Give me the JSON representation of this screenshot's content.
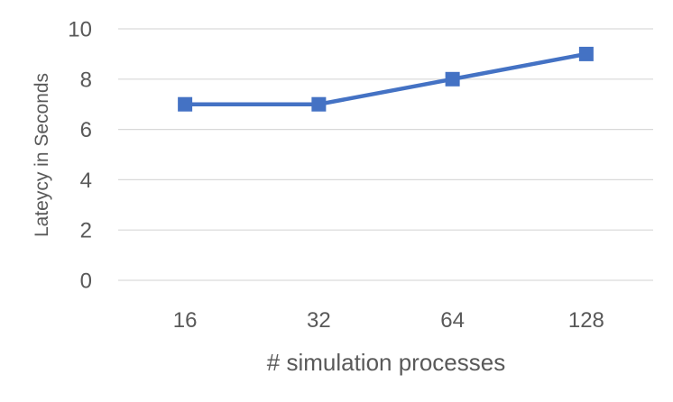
{
  "chart_data": {
    "type": "line",
    "title": "",
    "xlabel": "# simulation processes",
    "ylabel": "Lateycy in Seconds",
    "categories": [
      "16",
      "32",
      "64",
      "128"
    ],
    "series": [
      {
        "values": [
          7,
          7,
          8,
          9
        ],
        "color": "#4472c4",
        "marker": "square"
      }
    ],
    "ylim": [
      0,
      10
    ],
    "yticks": [
      "0",
      "2",
      "4",
      "6",
      "8",
      "10"
    ],
    "grid": true,
    "legend": "none"
  }
}
